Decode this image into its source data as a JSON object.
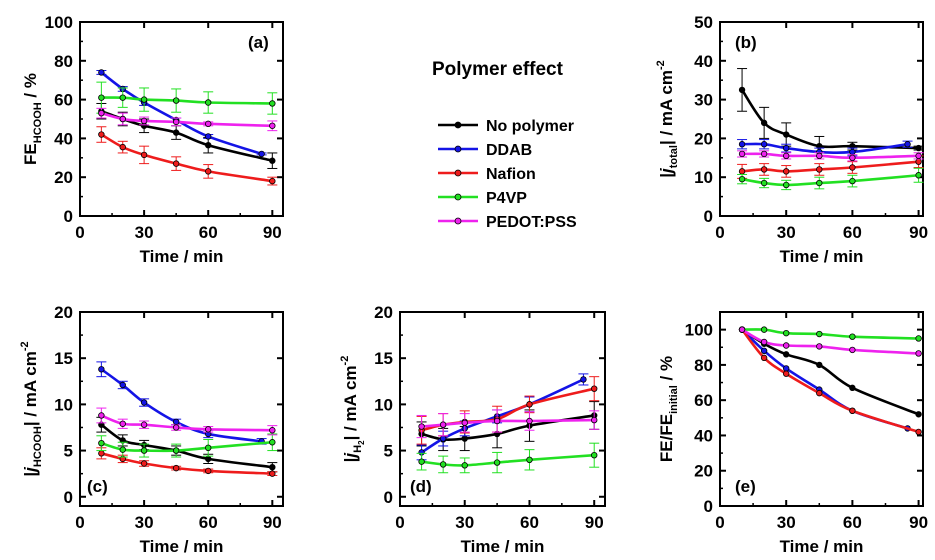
{
  "legend": {
    "title": "Polymer effect",
    "entries": [
      {
        "name": "No polymer",
        "color": "#000000"
      },
      {
        "name": "DDAB",
        "color": "#1414e6"
      },
      {
        "name": "Nafion",
        "color": "#ee1c1c"
      },
      {
        "name": "P4VP",
        "color": "#22e022"
      },
      {
        "name": "PEDOT:PSS",
        "color": "#ee22ee"
      }
    ]
  },
  "chart_data": [
    {
      "panel": "(a)",
      "type": "line",
      "xlabel": "Time / min",
      "ylabel_main": "FE",
      "ylabel_sub": "HCOOH",
      "ylabel_sup": "",
      "ylabel_tail": " / %",
      "ylabel_bars": false,
      "xlim": [
        0,
        95
      ],
      "ylim": [
        0,
        100
      ],
      "xticks": [
        0,
        30,
        60,
        90
      ],
      "yticks": [
        0,
        20,
        40,
        60,
        80,
        100
      ],
      "series": [
        {
          "name": "No polymer",
          "x": [
            10,
            20,
            30,
            45,
            60,
            90
          ],
          "y": [
            54,
            50,
            46.5,
            43,
            36.5,
            28.5
          ],
          "err": [
            4,
            3.5,
            3.5,
            3.5,
            4,
            4
          ]
        },
        {
          "name": "DDAB",
          "x": [
            10,
            20,
            30,
            45,
            60,
            85
          ],
          "y": [
            74,
            65.5,
            58.5,
            49.5,
            41,
            32
          ],
          "err": [
            1,
            1.2,
            1.5,
            1,
            1,
            0.5
          ]
        },
        {
          "name": "Nafion",
          "x": [
            10,
            20,
            30,
            45,
            60,
            90
          ],
          "y": [
            42,
            35.5,
            31.5,
            27,
            23,
            18
          ],
          "err": [
            4,
            3,
            4.5,
            3.5,
            3.5,
            2
          ]
        },
        {
          "name": "P4VP",
          "x": [
            10,
            20,
            30,
            45,
            60,
            90
          ],
          "y": [
            61,
            61,
            60,
            59.5,
            58.5,
            58
          ],
          "err": [
            8,
            5,
            6,
            6,
            5.5,
            5.5
          ]
        },
        {
          "name": "PEDOT:PSS",
          "x": [
            10,
            20,
            30,
            45,
            60,
            90
          ],
          "y": [
            53,
            50,
            49,
            48.5,
            47.5,
            46.5
          ],
          "err": [
            2.5,
            3,
            2,
            2,
            1,
            2.5
          ]
        }
      ]
    },
    {
      "panel": "(b)",
      "type": "line",
      "xlabel": "Time / min",
      "ylabel_main": "j",
      "ylabel_sub": "total",
      "ylabel_sup": "-2",
      "ylabel_tail": "| / mA cm",
      "ylabel_bars": true,
      "xlim": [
        0,
        92
      ],
      "ylim": [
        0,
        50
      ],
      "xticks": [
        0,
        30,
        60,
        90
      ],
      "yticks": [
        0,
        10,
        20,
        30,
        40,
        50
      ],
      "series": [
        {
          "name": "No polymer",
          "x": [
            10,
            20,
            30,
            45,
            60,
            90
          ],
          "y": [
            32.5,
            24,
            21,
            18,
            18,
            17.5
          ],
          "err": [
            5.5,
            4,
            3,
            2.5,
            1,
            0.5
          ]
        },
        {
          "name": "DDAB",
          "x": [
            10,
            20,
            30,
            45,
            60,
            85
          ],
          "y": [
            18.5,
            18.5,
            17.5,
            16.5,
            16.5,
            18.5
          ],
          "err": [
            1.2,
            1.2,
            1,
            1,
            1,
            0.8
          ]
        },
        {
          "name": "Nafion",
          "x": [
            10,
            20,
            30,
            45,
            60,
            90
          ],
          "y": [
            11.5,
            12,
            11.5,
            12,
            12.5,
            14
          ],
          "err": [
            1.8,
            1.5,
            1.5,
            1.5,
            1.5,
            1.5
          ]
        },
        {
          "name": "P4VP",
          "x": [
            10,
            20,
            30,
            45,
            60,
            90
          ],
          "y": [
            9.5,
            8.5,
            8,
            8.5,
            9,
            10.5
          ],
          "err": [
            1.2,
            1.2,
            1.2,
            1.5,
            1.5,
            1.8
          ]
        },
        {
          "name": "PEDOT:PSS",
          "x": [
            10,
            20,
            30,
            45,
            60,
            90
          ],
          "y": [
            16,
            16,
            15.5,
            15.5,
            15,
            15.5
          ],
          "err": [
            0.8,
            0.8,
            0.8,
            0.8,
            0.8,
            0.8
          ]
        }
      ]
    },
    {
      "panel": "(c)",
      "type": "line",
      "xlabel": "Time / min",
      "ylabel_main": "j",
      "ylabel_sub": "HCOOH",
      "ylabel_sup": "-2",
      "ylabel_tail": "| / mA cm",
      "ylabel_bars": true,
      "xlim": [
        0,
        95
      ],
      "ylim": [
        -1,
        20
      ],
      "xticks": [
        0,
        30,
        60,
        90
      ],
      "yticks": [
        0,
        5,
        10,
        15,
        20
      ],
      "series": [
        {
          "name": "No polymer",
          "x": [
            10,
            20,
            30,
            45,
            60,
            90
          ],
          "y": [
            7.8,
            6.1,
            5.6,
            5,
            4.1,
            3.2
          ],
          "err": [
            0.8,
            0.6,
            0.5,
            0.5,
            0.5,
            0.5
          ]
        },
        {
          "name": "DDAB",
          "x": [
            10,
            20,
            30,
            45,
            60,
            85
          ],
          "y": [
            13.8,
            12.1,
            10.2,
            8.1,
            6.8,
            6
          ],
          "err": [
            0.8,
            0.4,
            0.4,
            0.3,
            0.4,
            0.3
          ]
        },
        {
          "name": "Nafion",
          "x": [
            10,
            20,
            30,
            45,
            60,
            90
          ],
          "y": [
            4.7,
            4.1,
            3.6,
            3.1,
            2.8,
            2.5
          ],
          "err": [
            0.6,
            0.4,
            0.3,
            0.2,
            0.2,
            0.2
          ]
        },
        {
          "name": "P4VP",
          "x": [
            10,
            20,
            30,
            45,
            60,
            90
          ],
          "y": [
            5.8,
            5.1,
            5,
            5,
            5.3,
            5.9
          ],
          "err": [
            0.8,
            0.8,
            0.7,
            0.7,
            0.9,
            0.9
          ]
        },
        {
          "name": "PEDOT:PSS",
          "x": [
            10,
            20,
            30,
            45,
            60,
            90
          ],
          "y": [
            8.8,
            7.9,
            7.8,
            7.5,
            7.3,
            7.2
          ],
          "err": [
            0.8,
            0.5,
            0.4,
            0.3,
            0.3,
            0.5
          ]
        }
      ]
    },
    {
      "panel": "(d)",
      "type": "line",
      "xlabel": "Time / min",
      "ylabel_main": "j",
      "ylabel_sub": "H",
      "ylabel_sub2": "2",
      "ylabel_sup": "-2",
      "ylabel_tail": "| / mA cm",
      "ylabel_bars": true,
      "xlim": [
        0,
        95
      ],
      "ylim": [
        -1,
        20
      ],
      "xticks": [
        0,
        30,
        60,
        90
      ],
      "yticks": [
        0,
        5,
        10,
        15,
        20
      ],
      "series": [
        {
          "name": "No polymer",
          "x": [
            10,
            20,
            30,
            45,
            60,
            90
          ],
          "y": [
            6.8,
            6.2,
            6.3,
            6.8,
            7.7,
            8.8
          ],
          "err": [
            1.3,
            1.2,
            1.3,
            1.5,
            1.7,
            1.5
          ]
        },
        {
          "name": "DDAB",
          "x": [
            10,
            20,
            30,
            45,
            60,
            85
          ],
          "y": [
            4.8,
            6.3,
            7.4,
            8.7,
            10,
            12.7
          ],
          "err": [
            0.8,
            0.8,
            0.8,
            0.7,
            0.8,
            0.6
          ]
        },
        {
          "name": "Nafion",
          "x": [
            10,
            20,
            30,
            45,
            60,
            90
          ],
          "y": [
            7.2,
            7.8,
            8.1,
            8.4,
            10,
            11.7
          ],
          "err": [
            1.5,
            1.2,
            1.2,
            1.4,
            0.9,
            1.3
          ]
        },
        {
          "name": "P4VP",
          "x": [
            10,
            20,
            30,
            45,
            60,
            90
          ],
          "y": [
            3.8,
            3.5,
            3.4,
            3.7,
            4,
            4.5
          ],
          "err": [
            0.9,
            0.9,
            0.8,
            1.1,
            1.1,
            1.3
          ]
        },
        {
          "name": "PEDOT:PSS",
          "x": [
            10,
            20,
            30,
            45,
            60,
            90
          ],
          "y": [
            7.6,
            7.8,
            8,
            8.2,
            8.2,
            8.3
          ],
          "err": [
            1.2,
            1.2,
            1,
            1.2,
            1,
            1
          ]
        }
      ]
    },
    {
      "panel": "(e)",
      "type": "line",
      "xlabel": "Time / min",
      "ylabel_main": "FE/FE",
      "ylabel_sub": "initial",
      "ylabel_sup": "",
      "ylabel_tail": " / %",
      "ylabel_bars": false,
      "xlim": [
        0,
        92
      ],
      "ylim": [
        0,
        110
      ],
      "xticks": [
        0,
        30,
        60,
        90
      ],
      "yticks": [
        0,
        20,
        40,
        60,
        80,
        100
      ],
      "series": [
        {
          "name": "No polymer",
          "x": [
            10,
            20,
            30,
            45,
            60,
            90
          ],
          "y": [
            100,
            92,
            86,
            80,
            67,
            52
          ],
          "err": []
        },
        {
          "name": "DDAB",
          "x": [
            10,
            20,
            30,
            45,
            60,
            85
          ],
          "y": [
            100,
            88,
            78,
            66,
            54,
            44
          ],
          "err": []
        },
        {
          "name": "Nafion",
          "x": [
            10,
            20,
            30,
            45,
            60,
            90
          ],
          "y": [
            100,
            84,
            75,
            64,
            54,
            42
          ],
          "err": []
        },
        {
          "name": "P4VP",
          "x": [
            10,
            20,
            30,
            45,
            60,
            90
          ],
          "y": [
            100,
            100,
            98,
            97.5,
            96,
            95
          ],
          "err": []
        },
        {
          "name": "PEDOT:PSS",
          "x": [
            10,
            20,
            30,
            45,
            60,
            90
          ],
          "y": [
            100,
            93,
            91,
            90.5,
            88.5,
            86.5
          ],
          "err": []
        }
      ]
    }
  ]
}
